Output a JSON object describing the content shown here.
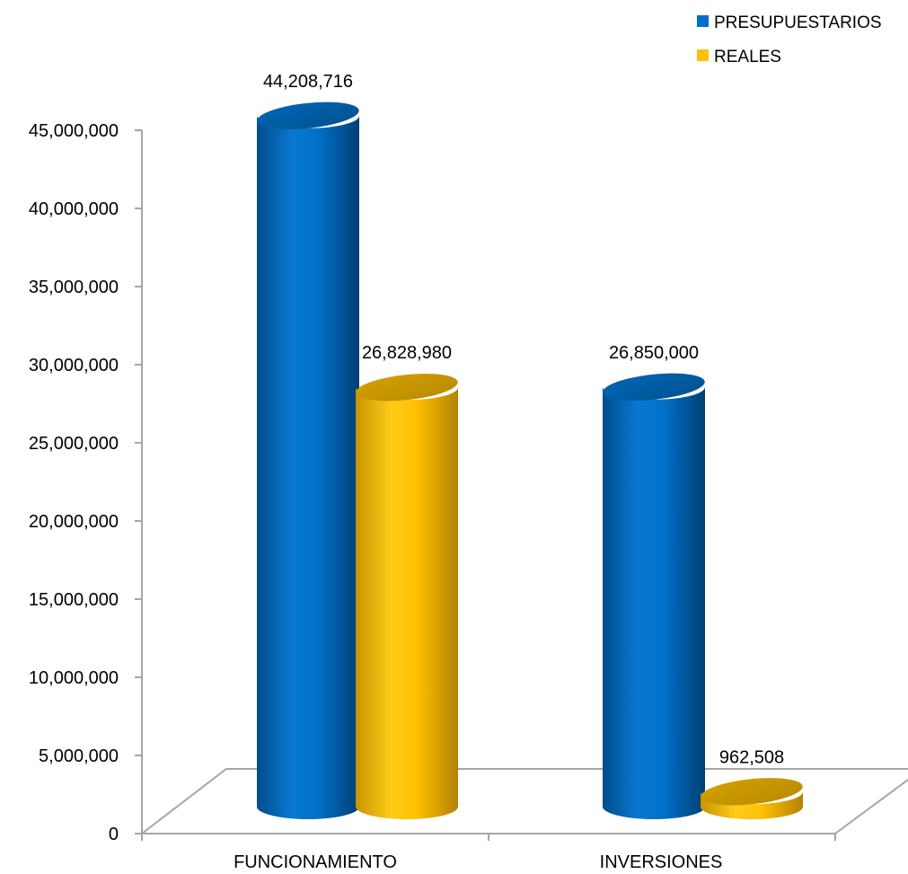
{
  "colors": {
    "presupuestarios": "#0070C8",
    "reales": "#FFC000"
  },
  "chart_data": {
    "type": "bar",
    "title": "",
    "xlabel": "",
    "ylabel": "",
    "categories": [
      "FUNCIONAMIENTO",
      "INVERSIONES"
    ],
    "series": [
      {
        "name": "PRESUPUESTARIOS",
        "values": [
          44208716,
          26850000
        ],
        "labels": [
          "44,208,716",
          "26,850,000"
        ]
      },
      {
        "name": "REALES",
        "values": [
          26828980,
          962508
        ],
        "labels": [
          "26,828,980",
          "962,508"
        ]
      }
    ],
    "ylim": [
      0,
      45000000
    ],
    "yticks": [
      0,
      5000000,
      10000000,
      15000000,
      20000000,
      25000000,
      30000000,
      35000000,
      40000000,
      45000000
    ],
    "ytick_labels": [
      "0",
      "5,000,000",
      "10,000,000",
      "15,000,000",
      "20,000,000",
      "25,000,000",
      "30,000,000",
      "35,000,000",
      "40,000,000",
      "45,000,000"
    ],
    "grid": false,
    "legend": "top-right",
    "style": "3d-cylinder"
  }
}
